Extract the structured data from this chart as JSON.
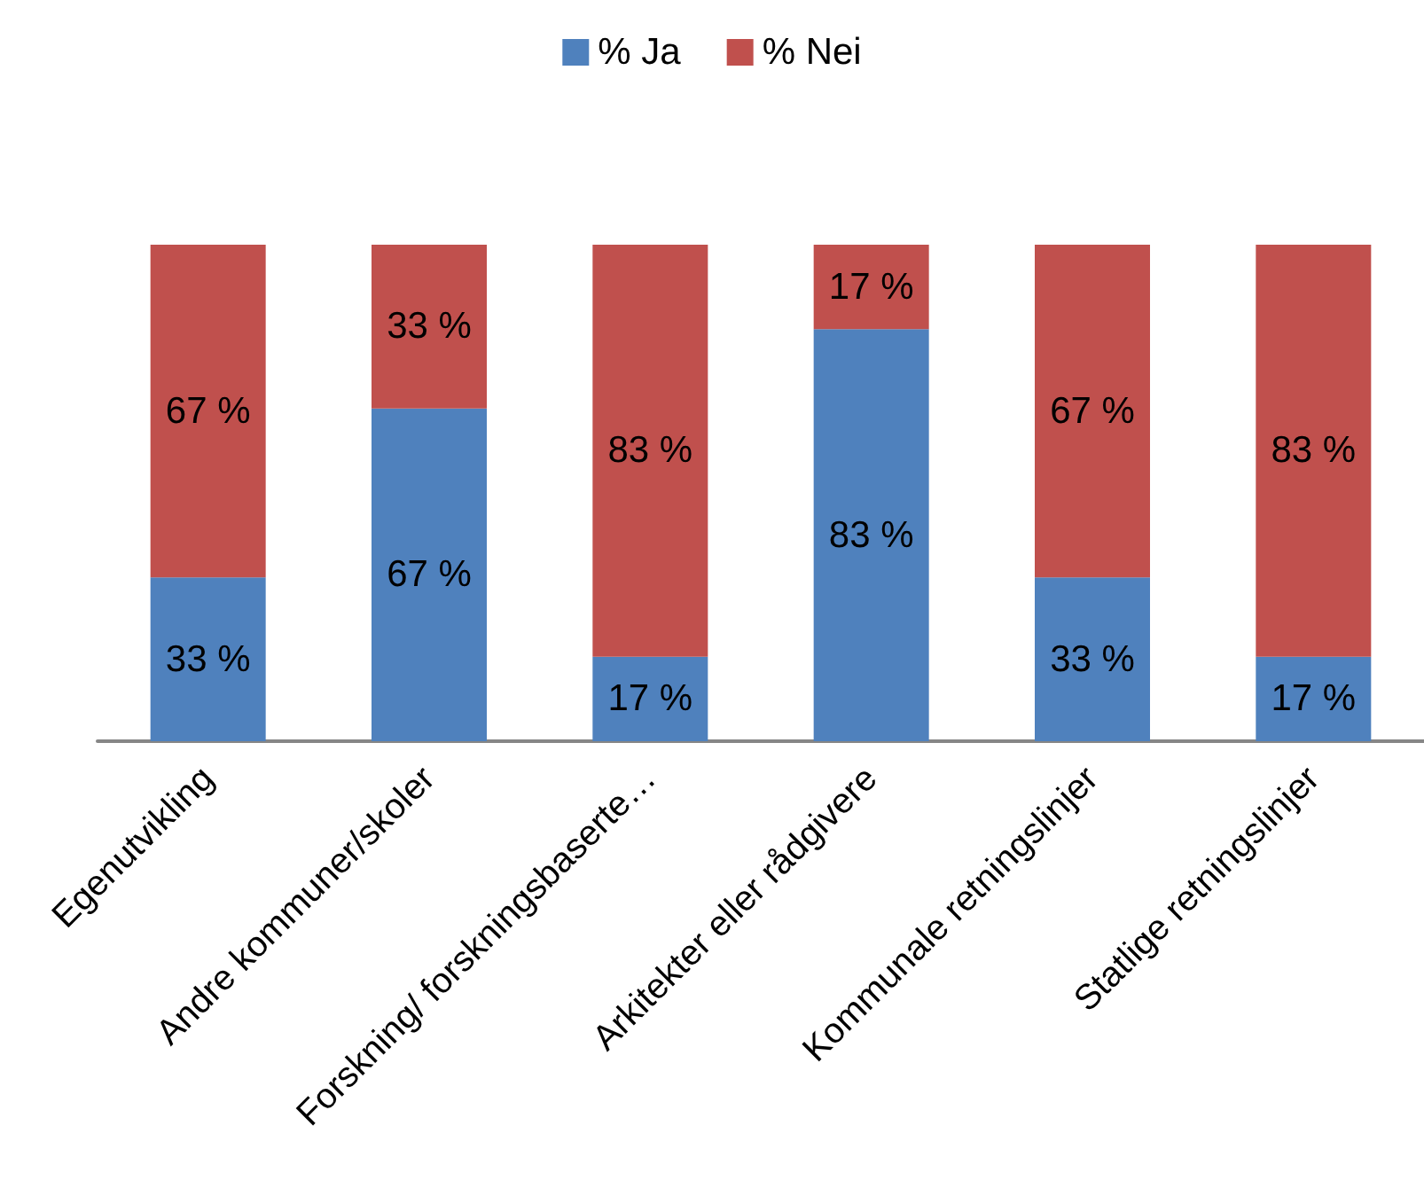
{
  "chart_data": {
    "type": "bar",
    "stacked": true,
    "categories": [
      "Egenutvikling",
      "Andre kommuner/skoler",
      "Forskning/ forskningsbaserte…",
      "Arkitekter eller rådgivere",
      "Kommunale retningslinjer",
      "Statlige retningslinjer"
    ],
    "series": [
      {
        "name": "% Ja",
        "color": "#4f81bd",
        "values": [
          33,
          67,
          17,
          83,
          33,
          17
        ],
        "value_labels": [
          "33 %",
          "67 %",
          "17 %",
          "83 %",
          "33 %",
          "17 %"
        ]
      },
      {
        "name": "% Nei",
        "color": "#c0504d",
        "values": [
          67,
          33,
          83,
          17,
          67,
          83
        ],
        "value_labels": [
          "67 %",
          "33 %",
          "83 %",
          "17 %",
          "67 %",
          "83 %"
        ]
      }
    ],
    "legend": "top"
  }
}
